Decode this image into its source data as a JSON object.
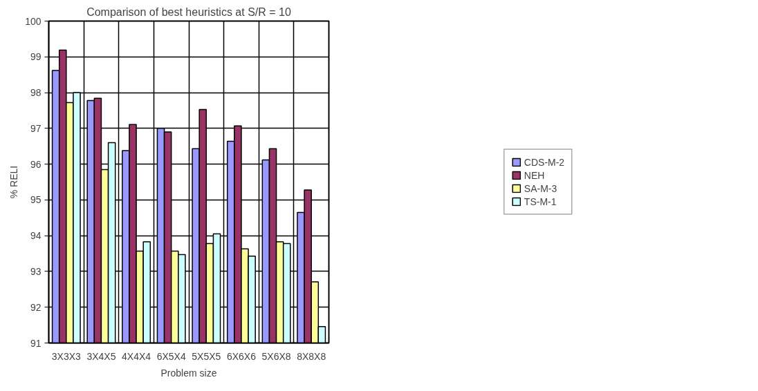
{
  "chart_data": {
    "type": "bar",
    "title": "Comparison of best heuristics at S/R = 10",
    "xlabel": "Problem size",
    "ylabel": "% RELI",
    "categories": [
      "3X3X3",
      "3X4X5",
      "4X4X4",
      "6X5X4",
      "5X5X5",
      "6X6X6",
      "5X6X8",
      "8X8X8"
    ],
    "series": [
      {
        "name": "CDS-M-2",
        "color": "#9999ff",
        "values": [
          98.62,
          97.78,
          96.38,
          97.0,
          96.43,
          96.64,
          96.12,
          94.65
        ]
      },
      {
        "name": "NEH",
        "color": "#993366",
        "values": [
          99.19,
          97.84,
          97.11,
          96.9,
          97.53,
          97.07,
          96.43,
          95.28
        ]
      },
      {
        "name": "SA-M-3",
        "color": "#ffff99",
        "values": [
          97.72,
          95.85,
          93.57,
          93.57,
          93.78,
          93.63,
          93.83,
          92.71
        ]
      },
      {
        "name": "TS-M-1",
        "color": "#ccffff",
        "values": [
          98.0,
          96.6,
          93.83,
          93.47,
          94.05,
          93.43,
          93.78,
          91.46
        ]
      }
    ],
    "ylim": [
      91,
      100
    ],
    "yticks": [
      91,
      92,
      93,
      94,
      95,
      96,
      97,
      98,
      99,
      100
    ],
    "grid": true,
    "legend": "right"
  }
}
